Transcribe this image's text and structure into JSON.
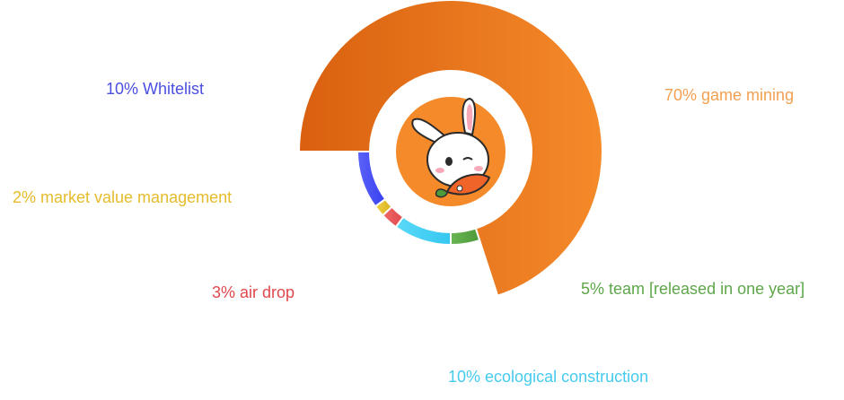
{
  "chart_data": {
    "type": "pie",
    "title": "",
    "slices": [
      {
        "label": "70% game mining",
        "value": 70,
        "color": "#F58A2A",
        "color_dark": "#D9600F",
        "text_color": "#F3A052"
      },
      {
        "label": "5% team [released in one year]",
        "value": 5,
        "color": "#4E9A3A",
        "color_dark": "#6AB553",
        "text_color": "#5EA64A"
      },
      {
        "label": "10% ecological construction",
        "value": 10,
        "color": "#35C7F0",
        "color_dark": "#5AD9F7",
        "text_color": "#45CBEF"
      },
      {
        "label": "3% air drop",
        "value": 3,
        "color": "#E0484C",
        "color_dark": "#F06A6A",
        "text_color": "#E0484C"
      },
      {
        "label": "2% market value management",
        "value": 2,
        "color": "#D9B21E",
        "color_dark": "#F0D04A",
        "text_color": "#E5BC2B"
      },
      {
        "label": "10% Whitelist",
        "value": 10,
        "color": "#3840F2",
        "color_dark": "#5C63F7",
        "text_color": "#4A4FE0"
      }
    ],
    "legend": "labels around chart",
    "center_image": "bunny-with-carrot-logo"
  }
}
